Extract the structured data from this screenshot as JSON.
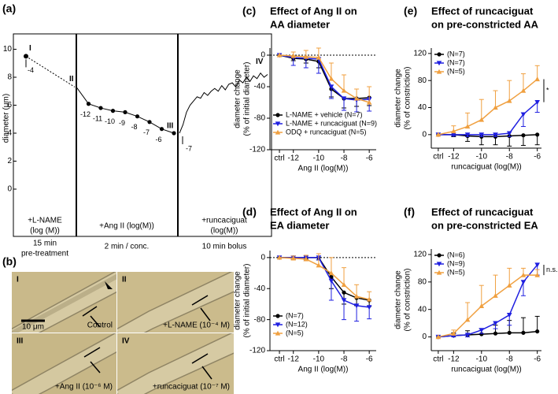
{
  "panel_a": {
    "label": "(a)",
    "ylabel": "diameter (μm)",
    "ylim": [
      0,
      11.1
    ],
    "yticks": [
      0,
      2,
      4,
      6,
      8,
      10
    ],
    "markers": [
      "I",
      "II",
      "III",
      "IV"
    ],
    "pretreatment": [
      9.5,
      7.3
    ],
    "pretreatment_dose": "-4",
    "angii": [
      7.3,
      6.1,
      5.8,
      5.6,
      5.5,
      5.2,
      4.8,
      4.3,
      4.0
    ],
    "angii_doses": [
      "-12",
      "-11",
      "-10",
      "-9",
      "-8",
      "-7",
      "-6"
    ],
    "runcaciguat_dose": "-7",
    "runcaciguat": [
      4.0,
      4.6,
      5.5,
      6.0,
      6.3,
      6.6,
      6.5,
      6.9,
      6.7,
      7.0,
      7.2,
      7.0,
      7.4,
      7.1,
      7.5,
      7.6,
      7.3,
      7.8,
      7.6,
      8.0,
      7.7,
      8.1,
      7.9,
      8.3,
      8.0,
      8.2
    ],
    "sections": [
      {
        "title": [
          "+L-NAME",
          "(log (M))"
        ],
        "caption": [
          "15 min",
          "pre-treatment"
        ]
      },
      {
        "title": [
          "+Ang II (log(M))"
        ],
        "caption": [
          "2 min / conc."
        ]
      },
      {
        "title": [
          "+runcaciguat",
          "(log(M))"
        ],
        "caption": [
          "10 min bolus"
        ]
      }
    ]
  },
  "panel_b": {
    "label": "(b)",
    "numerals": [
      "I",
      "II",
      "III",
      "IV"
    ],
    "scale_bar": "10 μm",
    "captions": [
      "Control",
      "+L-NAME (10⁻⁴ M)",
      "+Ang II (10⁻⁶ M)",
      "+runcaciguat (10⁻⁷ M)"
    ]
  },
  "chart_data": [
    {
      "type": "line",
      "label": "(c)",
      "title": [
        "Effect of Ang II on",
        "AA diameter"
      ],
      "ylabel": [
        "diameter change",
        "(% of initial diameter)"
      ],
      "xlabel": "Ang II (log(M))",
      "x": [
        -13.1,
        -12,
        -11,
        -10,
        -9,
        -8,
        -7,
        -6
      ],
      "xlim": [
        -13.85,
        -5.45
      ],
      "xticks": [
        {
          "value": -13.1,
          "label": "ctrl"
        },
        -12,
        -10,
        -8,
        -6
      ],
      "ylim": [
        -120,
        9
      ],
      "yticks": [
        -120,
        -80,
        -40,
        0
      ],
      "zero_line": true,
      "legend": "lower center",
      "series": [
        {
          "name": "L-NAME + vehicle (N=7)",
          "color": "#000000",
          "marker": "circle",
          "error_side": "down",
          "values": [
            0,
            -4,
            -5,
            -8,
            -43,
            -55,
            -55,
            -54
          ],
          "errors": [
            0,
            3,
            5,
            8,
            10,
            12,
            10,
            10
          ]
        },
        {
          "name": "L-NAME + runcaciguat (N=9)",
          "color": "#1f1fe0",
          "marker": "triangle-down",
          "error_side": "down",
          "values": [
            0,
            -3,
            -4,
            -5,
            -40,
            -55,
            -57,
            -56
          ],
          "errors": [
            0,
            10,
            12,
            18,
            15,
            15,
            15,
            15
          ]
        },
        {
          "name": "ODQ + runcaciguat (N=5)",
          "color": "#f0a040",
          "marker": "triangle-up",
          "error_side": "up",
          "values": [
            0,
            -1,
            -2,
            -3,
            -30,
            -45,
            -55,
            -60
          ],
          "errors": [
            0,
            5,
            8,
            12,
            20,
            20,
            12,
            20
          ]
        }
      ]
    },
    {
      "type": "line",
      "label": "(d)",
      "title": [
        "Effect of Ang II on",
        "EA diameter"
      ],
      "ylabel": [
        "diameter change",
        "(% of initial diameter)"
      ],
      "xlabel": "Ang II (log(M))",
      "x": [
        -13.1,
        -12,
        -11,
        -10,
        -9,
        -8,
        -7,
        -6
      ],
      "xlim": [
        -13.85,
        -5.45
      ],
      "xticks": [
        {
          "value": -13.1,
          "label": "ctrl"
        },
        -12,
        -10,
        -8,
        -6
      ],
      "ylim": [
        -120,
        9
      ],
      "yticks": [
        -120,
        -80,
        -40,
        0
      ],
      "zero_line": true,
      "legend": "lower center",
      "series": [
        {
          "name": "(N=7)",
          "color": "#000000",
          "marker": "circle",
          "error_side": "down",
          "values": [
            0,
            0,
            0,
            0,
            -25,
            -45,
            -52,
            -55
          ],
          "errors": [
            0,
            2,
            2,
            3,
            15,
            15,
            10,
            8
          ]
        },
        {
          "name": "(N=12)",
          "color": "#1f1fe0",
          "marker": "triangle-down",
          "error_side": "down",
          "values": [
            0,
            0,
            0,
            0,
            -30,
            -55,
            -62,
            -64
          ],
          "errors": [
            0,
            2,
            3,
            3,
            25,
            25,
            20,
            15
          ]
        },
        {
          "name": "(N=5)",
          "color": "#f0a040",
          "marker": "triangle-up",
          "error_side": "up",
          "values": [
            0,
            -1,
            -2,
            -10,
            -20,
            -35,
            -50,
            -54
          ],
          "errors": [
            0,
            3,
            5,
            15,
            20,
            22,
            15,
            10
          ]
        }
      ]
    },
    {
      "type": "line",
      "label": "(e)",
      "title": [
        "Effect of runcaciguat",
        "on pre-constricted AA"
      ],
      "ylabel": [
        "diameter change",
        "(% of constriction)"
      ],
      "xlabel": "runcaciguat (log(M))",
      "x": [
        -13.1,
        -12,
        -11,
        -10,
        -9,
        -8,
        -7,
        -6
      ],
      "xlim": [
        -13.6,
        -5.7
      ],
      "xticks": [
        {
          "value": -13.1,
          "label": "ctrl"
        },
        -12,
        -10,
        -8,
        -6
      ],
      "ylim": [
        -20,
        128
      ],
      "yticks": [
        0,
        40,
        80,
        120
      ],
      "zero_line": false,
      "legend": "upper left",
      "annotation": "*",
      "series": [
        {
          "name": "(N=7)",
          "color": "#000000",
          "marker": "circle",
          "error_side": "down",
          "values": [
            0,
            0,
            -2,
            -3,
            -3,
            -2,
            -1,
            0
          ],
          "errors": [
            0,
            3,
            8,
            12,
            12,
            15,
            15,
            15
          ]
        },
        {
          "name": "(N=7)",
          "color": "#1f1fe0",
          "marker": "triangle-down",
          "error_side": "down",
          "values": [
            0,
            0,
            0,
            0,
            0,
            2,
            30,
            48
          ],
          "errors": [
            0,
            2,
            3,
            3,
            3,
            5,
            18,
            15
          ]
        },
        {
          "name": "(N=5)",
          "color": "#f0a040",
          "marker": "triangle-up",
          "error_side": "up",
          "values": [
            0,
            5,
            12,
            22,
            40,
            50,
            65,
            82
          ],
          "errors": [
            0,
            8,
            20,
            30,
            25,
            30,
            25,
            20
          ]
        }
      ]
    },
    {
      "type": "line",
      "label": "(f)",
      "title": [
        "Effect of runcaciguat",
        "on pre-constricted EA"
      ],
      "ylabel": [
        "diameter change",
        "(% of constriction)"
      ],
      "xlabel": "runcaciguat (log(M))",
      "x": [
        -13.1,
        -12,
        -11,
        -10,
        -9,
        -8,
        -7,
        -6
      ],
      "xlim": [
        -13.6,
        -5.7
      ],
      "xticks": [
        {
          "value": -13.1,
          "label": "ctrl"
        },
        -12,
        -10,
        -8,
        -6
      ],
      "ylim": [
        -20,
        128
      ],
      "yticks": [
        0,
        40,
        80,
        120
      ],
      "zero_line": false,
      "legend": "upper left",
      "annotation": "n.s.",
      "series": [
        {
          "name": "(N=6)",
          "color": "#000000",
          "marker": "circle",
          "error_side": "up",
          "values": [
            0,
            2,
            3,
            4,
            5,
            6,
            6,
            8
          ],
          "errors": [
            0,
            4,
            6,
            8,
            12,
            18,
            22,
            22
          ]
        },
        {
          "name": "(N=9)",
          "color": "#1f1fe0",
          "marker": "triangle-down",
          "error_side": "down",
          "values": [
            0,
            2,
            3,
            10,
            20,
            32,
            80,
            105
          ],
          "errors": [
            0,
            2,
            3,
            5,
            8,
            15,
            20,
            15
          ]
        },
        {
          "name": "(N=5)",
          "color": "#f0a040",
          "marker": "triangle-up",
          "error_side": "up",
          "values": [
            0,
            5,
            25,
            45,
            60,
            75,
            90,
            90
          ],
          "errors": [
            0,
            5,
            25,
            30,
            30,
            25,
            10,
            8
          ]
        }
      ]
    }
  ]
}
